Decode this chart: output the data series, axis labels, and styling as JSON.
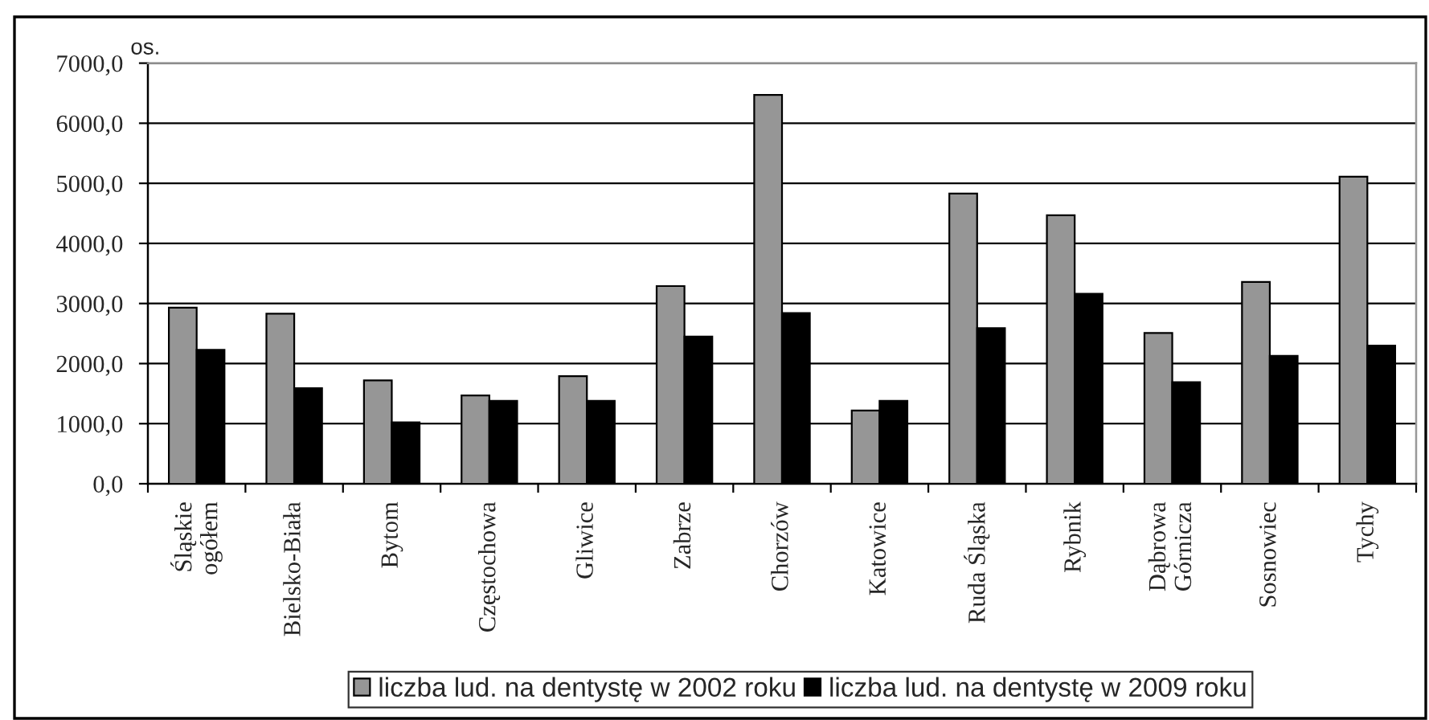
{
  "chart_data": {
    "type": "bar",
    "ylabel": "os.",
    "categories": [
      "Śląskie\nogółem",
      "Bielsko-Biała",
      "Bytom",
      "Częstochowa",
      "Gliwice",
      "Zabrze",
      "Chorzów",
      "Katowice",
      "Ruda Śląska",
      "Rybnik",
      "Dąbrowa\nGórnicza",
      "Sosnowiec",
      "Tychy"
    ],
    "series": [
      {
        "name": "liczba lud. na dentystę w 2002 roku",
        "color": "#969696",
        "values": [
          2930,
          2830,
          1720,
          1470,
          1790,
          3290,
          6470,
          1220,
          4830,
          4470,
          2510,
          3360,
          5110
        ]
      },
      {
        "name": "liczba lud. na dentystę w 2009 roku",
        "color": "#000000",
        "values": [
          2230,
          1590,
          1020,
          1380,
          1380,
          2450,
          2840,
          1380,
          2590,
          3160,
          1690,
          2130,
          2300
        ]
      }
    ],
    "ylim": [
      0,
      7000
    ],
    "yticks": [
      {
        "value": 0,
        "label": "0,0"
      },
      {
        "value": 1000,
        "label": "1000,0"
      },
      {
        "value": 2000,
        "label": "2000,0"
      },
      {
        "value": 3000,
        "label": "3000,0"
      },
      {
        "value": 4000,
        "label": "4000,0"
      },
      {
        "value": 5000,
        "label": "5000,0"
      },
      {
        "value": 6000,
        "label": "6000,0"
      },
      {
        "value": 7000,
        "label": "7000,0"
      }
    ],
    "grid": "y",
    "legend": "bottom"
  }
}
